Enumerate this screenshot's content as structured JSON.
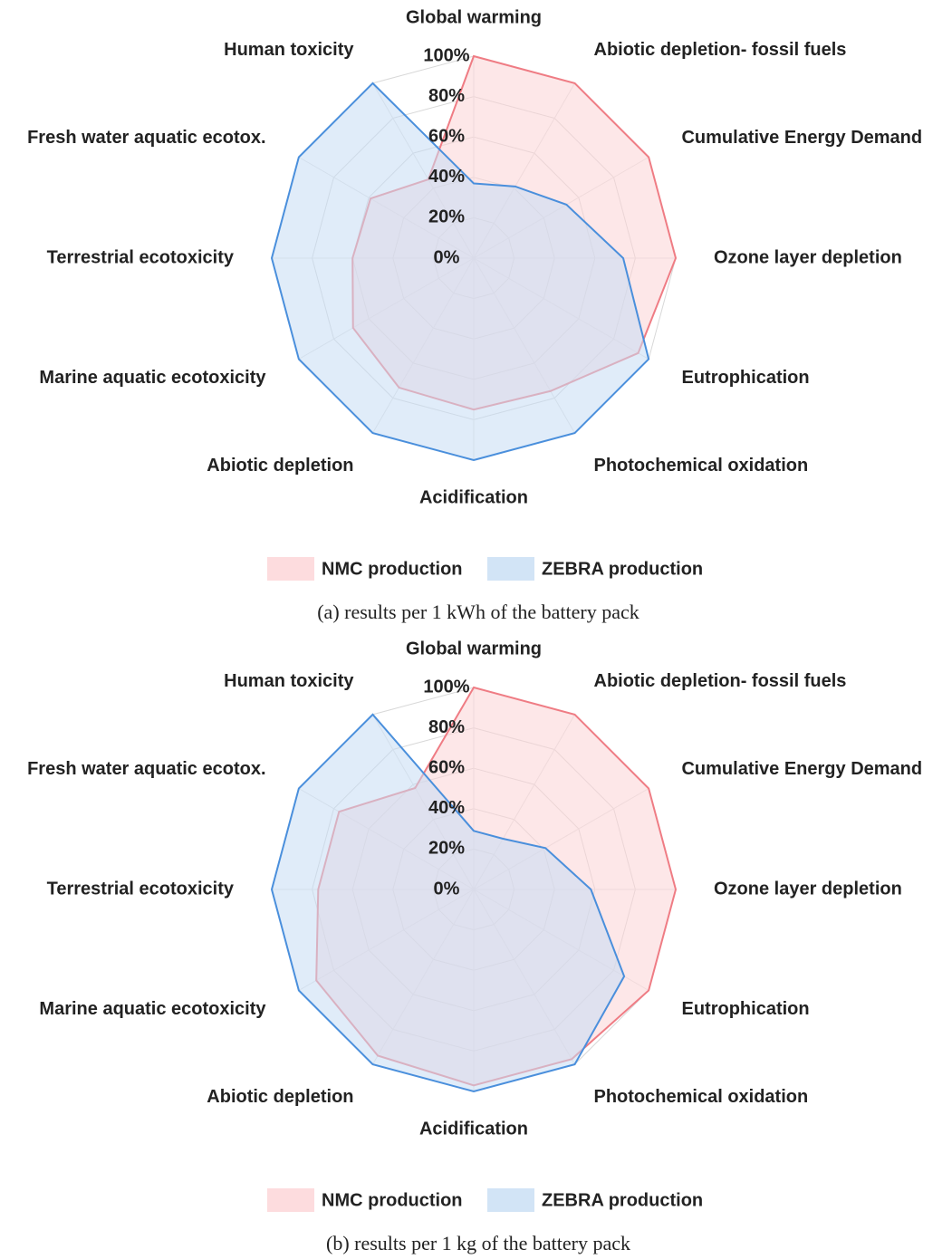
{
  "chart_data": [
    {
      "type": "radar",
      "categories": [
        "Global warming",
        "Abiotic depletion- fossil fuels",
        "Cumulative Energy Demand",
        "Ozone layer depletion",
        "Eutrophication",
        "Photochemical oxidation",
        "Acidification",
        "Abiotic depletion",
        "Marine aquatic ecotoxicity",
        "Terrestrial ecotoxicity",
        "Fresh water aquatic ecotox.",
        "Human toxicity"
      ],
      "series": [
        {
          "name": "NMC production",
          "color": "#ef7c84",
          "fill": "#fcd3d6",
          "values": [
            100,
            100,
            100,
            100,
            94,
            76,
            75,
            74,
            69,
            60,
            59,
            45
          ]
        },
        {
          "name": "ZEBRA production",
          "color": "#4a8fdc",
          "fill": "#c7ddf4",
          "values": [
            37,
            41,
            53,
            74,
            100,
            100,
            100,
            100,
            100,
            100,
            100,
            100
          ]
        }
      ],
      "ylim": [
        0,
        100
      ],
      "yticks": [
        {
          "value": 0,
          "label": "0%"
        },
        {
          "value": 20,
          "label": "20%"
        },
        {
          "value": 40,
          "label": "40%"
        },
        {
          "value": 60,
          "label": "60%"
        },
        {
          "value": 80,
          "label": "80%"
        },
        {
          "value": 100,
          "label": "100%"
        }
      ],
      "grid": true,
      "legend": "bottom",
      "caption": "(a) results per 1 kWh of the battery pack"
    },
    {
      "type": "radar",
      "categories": [
        "Global warming",
        "Abiotic depletion- fossil fuels",
        "Cumulative Energy Demand",
        "Ozone layer depletion",
        "Eutrophication",
        "Photochemical oxidation",
        "Acidification",
        "Abiotic depletion",
        "Marine aquatic ecotoxicity",
        "Terrestrial ecotoxicity",
        "Fresh water aquatic ecotox.",
        "Human toxicity"
      ],
      "series": [
        {
          "name": "NMC production",
          "color": "#ef7c84",
          "fill": "#fcd3d6",
          "values": [
            100,
            100,
            100,
            100,
            100,
            97,
            97,
            95,
            90,
            77,
            77,
            58
          ]
        },
        {
          "name": "ZEBRA production",
          "color": "#4a8fdc",
          "fill": "#c7ddf4",
          "values": [
            29,
            29,
            41,
            58,
            86,
            100,
            100,
            100,
            100,
            100,
            100,
            100
          ]
        }
      ],
      "ylim": [
        0,
        100
      ],
      "yticks": [
        {
          "value": 0,
          "label": "0%"
        },
        {
          "value": 20,
          "label": "20%"
        },
        {
          "value": 40,
          "label": "40%"
        },
        {
          "value": 60,
          "label": "60%"
        },
        {
          "value": 80,
          "label": "80%"
        },
        {
          "value": 100,
          "label": "100%"
        }
      ],
      "grid": true,
      "legend": "bottom",
      "caption": "(b) results per 1 kg of the battery pack"
    }
  ]
}
